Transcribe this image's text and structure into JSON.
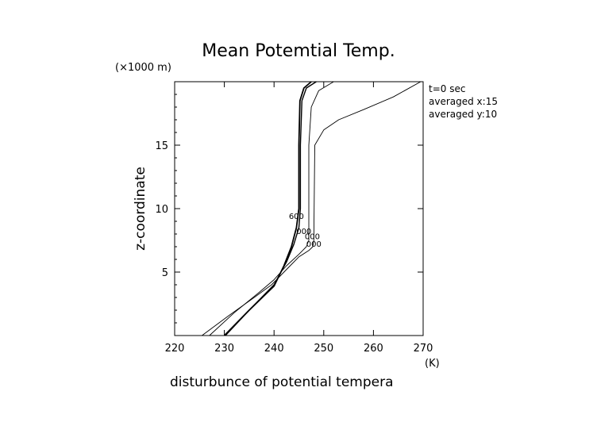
{
  "chart_data": {
    "type": "line",
    "title": "Mean Potemtial Temp.",
    "y_unit_label": "(×1000 m)",
    "ylabel": "z-coordinate",
    "xlabel": "disturbunce of potential tempera",
    "x_unit_label": "(K)",
    "annotations": [
      "t=0 sec",
      "averaged  x:15",
      "averaged  y:10"
    ],
    "xlim": [
      220,
      270
    ],
    "ylim": [
      0,
      20
    ],
    "x_ticks": [
      220,
      230,
      240,
      250,
      260,
      270
    ],
    "y_ticks": [
      5,
      10,
      15
    ],
    "grid": false,
    "series": [
      {
        "x": [
          230,
          235,
          240,
          242,
          243.5,
          244.5,
          245,
          245,
          245.2,
          246,
          247.5
        ],
        "y": [
          0,
          2,
          3.9,
          5.5,
          7,
          8.5,
          10,
          15,
          18.5,
          19.5,
          20
        ]
      },
      {
        "x": [
          230.2,
          235,
          240,
          242.5,
          244,
          245,
          245.3,
          245.3,
          245.6,
          246.5,
          248.5
        ],
        "y": [
          0,
          2,
          4,
          5.8,
          7.2,
          8.5,
          10,
          15,
          18.5,
          19.5,
          20
        ]
      },
      {
        "x": [
          227,
          232,
          237,
          240,
          242.5,
          245,
          246.5,
          247,
          247,
          247.5,
          249,
          252
        ],
        "y": [
          0,
          1.8,
          3.4,
          4.4,
          5.5,
          6.4,
          7,
          7.5,
          15,
          18,
          19.3,
          20
        ]
      },
      {
        "x": [
          225.5,
          231,
          236,
          239.5,
          242,
          245,
          247,
          247.8,
          248,
          248.2,
          250,
          253,
          258,
          264,
          269.5
        ],
        "y": [
          0,
          1.6,
          3,
          4,
          5,
          6.2,
          6.7,
          7,
          7.5,
          15,
          16.2,
          17,
          17.8,
          18.8,
          20
        ]
      }
    ],
    "contour_labels": [
      {
        "text": "000",
        "x": 246,
        "y": 8.0
      },
      {
        "text": "000",
        "x": 247.7,
        "y": 7.6
      },
      {
        "text": "000",
        "x": 248,
        "y": 7.0
      },
      {
        "text": "600",
        "x": 244.5,
        "y": 9.2
      }
    ]
  }
}
